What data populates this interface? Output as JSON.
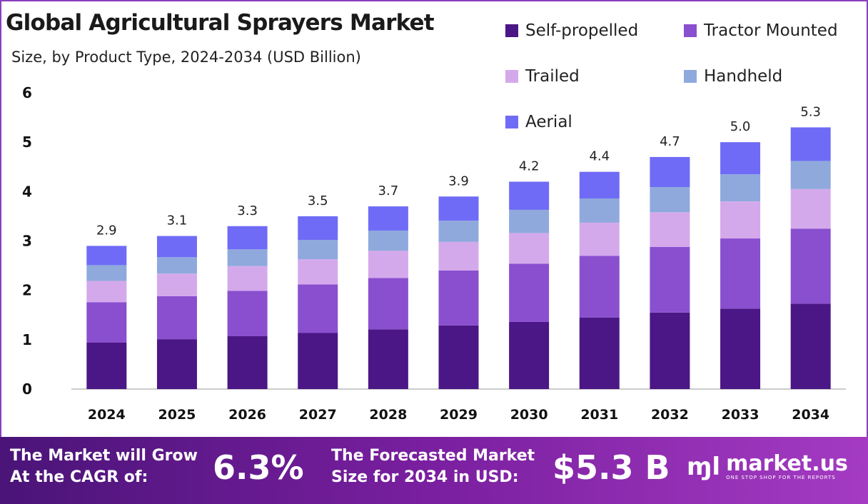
{
  "chart_data": {
    "type": "bar",
    "stacked": true,
    "title": "Global Agricultural Sprayers Market",
    "subtitle": "Size, by Product Type, 2024-2034 (USD Billion)",
    "categories": [
      "2024",
      "2025",
      "2026",
      "2027",
      "2028",
      "2029",
      "2030",
      "2031",
      "2032",
      "2033",
      "2034"
    ],
    "totals": [
      "2.9",
      "3.1",
      "3.3",
      "3.5",
      "3.7",
      "3.9",
      "4.2",
      "4.4",
      "4.7",
      "5.0",
      "5.3"
    ],
    "series": [
      {
        "name": "Self-propelled",
        "color": "#4b1685",
        "values": [
          0.94,
          1.01,
          1.07,
          1.14,
          1.21,
          1.29,
          1.36,
          1.45,
          1.55,
          1.63,
          1.73
        ]
      },
      {
        "name": "Tractor Mounted",
        "color": "#8a4fcf",
        "values": [
          0.82,
          0.87,
          0.92,
          0.98,
          1.04,
          1.11,
          1.18,
          1.25,
          1.33,
          1.42,
          1.52
        ]
      },
      {
        "name": "Trailed",
        "color": "#d4a9ec",
        "values": [
          0.43,
          0.46,
          0.5,
          0.51,
          0.55,
          0.58,
          0.62,
          0.67,
          0.7,
          0.75,
          0.8
        ]
      },
      {
        "name": "Handheld",
        "color": "#8fa9dd",
        "values": [
          0.32,
          0.33,
          0.34,
          0.39,
          0.41,
          0.43,
          0.47,
          0.49,
          0.51,
          0.55,
          0.57
        ]
      },
      {
        "name": "Aerial",
        "color": "#6f6bf6",
        "values": [
          0.39,
          0.43,
          0.47,
          0.48,
          0.49,
          0.49,
          0.57,
          0.54,
          0.61,
          0.65,
          0.68
        ]
      }
    ],
    "yticks": [
      "0",
      "1",
      "2",
      "3",
      "4",
      "5",
      "6"
    ],
    "ylim": [
      0,
      6
    ],
    "grid": false,
    "legend": "top-right"
  },
  "footer": {
    "cagr_label_1": "The Market will Grow",
    "cagr_label_2": "At the CAGR of:",
    "cagr_value": "6.3%",
    "forecast_label_1": "The Forecasted Market",
    "forecast_label_2": "Size for 2034 in USD:",
    "forecast_value": "$5.3 B",
    "logo_name": "market.us",
    "logo_tagline": "ONE STOP SHOP FOR THE REPORTS"
  }
}
